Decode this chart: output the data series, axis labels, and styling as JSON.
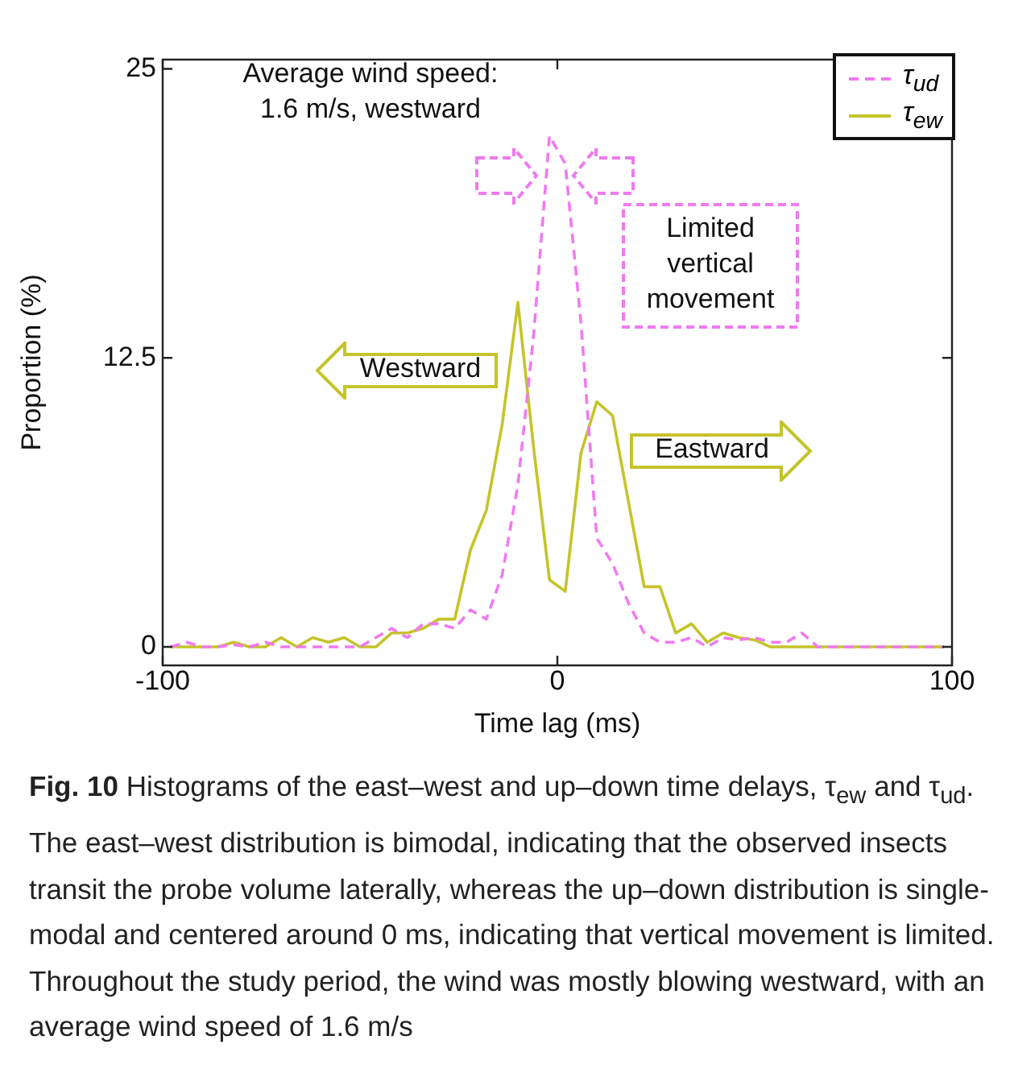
{
  "chart_data": {
    "type": "line",
    "xlabel": "Time lag (ms)",
    "ylabel": "Proportion (%)",
    "xlim": [
      -100,
      100
    ],
    "xticks": [
      -100,
      0,
      100
    ],
    "ylim": [
      -0.8,
      25.4
    ],
    "yticks": [
      0,
      12.5,
      25
    ],
    "x": [
      -98,
      -94,
      -90,
      -86,
      -82,
      -78,
      -74,
      -70,
      -66,
      -62,
      -58,
      -54,
      -50,
      -46,
      -42,
      -38,
      -34,
      -30,
      -26,
      -22,
      -18,
      -14,
      -10,
      -6,
      -2,
      2,
      6,
      10,
      14,
      18,
      22,
      26,
      30,
      34,
      38,
      42,
      46,
      50,
      54,
      58,
      62,
      66,
      70,
      74,
      78,
      82,
      86,
      90,
      94,
      98
    ],
    "series": [
      {
        "name": "τ$_{ud}$",
        "color": "#f07af0",
        "line_style": "dashed",
        "values": [
          0,
          0.2,
          0,
          0,
          0.1,
          0,
          0.2,
          0,
          0,
          0,
          0,
          0,
          0,
          0.4,
          0.8,
          0.4,
          1.0,
          1.0,
          0.8,
          1.6,
          1.2,
          3.1,
          7.0,
          13.5,
          22.1,
          20.9,
          14.0,
          4.7,
          3.6,
          1.9,
          0.6,
          0.2,
          0.2,
          0.4,
          0,
          0.4,
          0.3,
          0.4,
          0.2,
          0.2,
          0.6,
          0,
          0,
          0,
          0,
          0,
          0,
          0,
          0,
          0
        ]
      },
      {
        "name": "τ$_{ew}$",
        "color": "#c4c42a",
        "line_style": "solid",
        "values": [
          0,
          0,
          0,
          0,
          0.2,
          0,
          0,
          0.4,
          0,
          0.4,
          0.2,
          0.4,
          0,
          0,
          0.6,
          0.6,
          0.8,
          1.2,
          1.2,
          4.2,
          5.9,
          9.6,
          14.9,
          8.6,
          2.9,
          2.4,
          8.4,
          10.6,
          10.0,
          6.3,
          2.6,
          2.6,
          0.6,
          1.0,
          0.2,
          0.6,
          0.4,
          0.3,
          0,
          0,
          0,
          0,
          0,
          0,
          0,
          0,
          0,
          0,
          0,
          0
        ]
      }
    ],
    "legend": "top right",
    "grid": false,
    "annotations": [
      "Average wind speed:\n1.6 m/s, westward",
      "Westward",
      "Eastward",
      "Limited vertical movement",
      "Fig. 10",
      "Histograms of the east–west and up–down time delays, τ$_{ew}$ and τ$_{ud}$. The east–west distribution is bimodal, indicating that the observed insects transit the probe volume laterally, whereas the up–down distribution is single-modal and centered around 0 ms, indicating that vertical movement is limited. Throughout the study period, the wind was mostly blowing westward, with an average wind speed of 1.6 m/s"
    ]
  }
}
